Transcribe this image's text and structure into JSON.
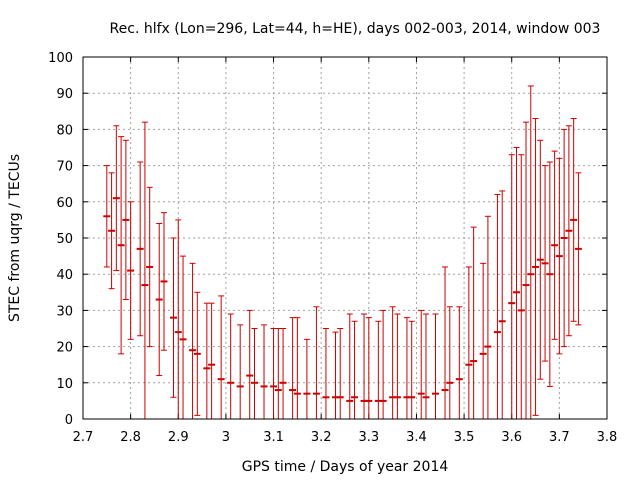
{
  "chart_data": {
    "type": "scatter",
    "title": "Rec. hlfx (Lon=296, Lat=44, h=HE), days 002-003, 2014, window 003",
    "xlabel": "GPS time / Days of year 2014",
    "ylabel": "STEC from uqrg / TECUs",
    "xlim": [
      2.7,
      3.8
    ],
    "ylim": [
      0,
      100
    ],
    "xticks": [
      "2.7",
      "2.8",
      "2.9",
      "3",
      "3.1",
      "3.2",
      "3.3",
      "3.4",
      "3.5",
      "3.6",
      "3.7",
      "3.8"
    ],
    "yticks": [
      "0",
      "10",
      "20",
      "30",
      "40",
      "50",
      "60",
      "70",
      "80",
      "90",
      "100"
    ],
    "grid": true,
    "series_color": "#cc0000",
    "series": [
      {
        "x": [
          2.75,
          2.76,
          2.77,
          2.78,
          2.79,
          2.8,
          2.82,
          2.83,
          2.84,
          2.86,
          2.87,
          2.89,
          2.9,
          2.91,
          2.93,
          2.94,
          2.96,
          2.97,
          2.99,
          3.01,
          3.03,
          3.05,
          3.06,
          3.08,
          3.1,
          3.11,
          3.12,
          3.14,
          3.15,
          3.17,
          3.19,
          3.21,
          3.23,
          3.24,
          3.26,
          3.27,
          3.29,
          3.3,
          3.32,
          3.33,
          3.35,
          3.36,
          3.38,
          3.39,
          3.41,
          3.42,
          3.44,
          3.46,
          3.47,
          3.49,
          3.51,
          3.52,
          3.54,
          3.55,
          3.57,
          3.58,
          3.6,
          3.61,
          3.62,
          3.63,
          3.64,
          3.65,
          3.66,
          3.67,
          3.68,
          3.69,
          3.7,
          3.71,
          3.72,
          3.73,
          3.74
        ],
        "y": [
          56,
          52,
          61,
          48,
          55,
          41,
          47,
          37,
          42,
          33,
          38,
          28,
          24,
          22,
          19,
          18,
          14,
          15,
          11,
          10,
          9,
          12,
          10,
          9,
          9,
          8,
          10,
          8,
          7,
          7,
          7,
          6,
          6,
          6,
          5,
          6,
          5,
          5,
          5,
          5,
          6,
          6,
          6,
          6,
          7,
          6,
          7,
          8,
          10,
          11,
          15,
          16,
          18,
          20,
          24,
          27,
          32,
          35,
          30,
          37,
          40,
          42,
          44,
          43,
          40,
          48,
          45,
          50,
          52,
          55,
          47
        ],
        "yerr": [
          14,
          16,
          20,
          30,
          22,
          19,
          24,
          45,
          22,
          21,
          19,
          22,
          31,
          23,
          24,
          17,
          18,
          17,
          23,
          19,
          17,
          18,
          15,
          17,
          16,
          17,
          15,
          20,
          21,
          15,
          24,
          19,
          18,
          19,
          24,
          21,
          24,
          23,
          22,
          25,
          25,
          23,
          22,
          21,
          23,
          23,
          22,
          34,
          21,
          20,
          27,
          37,
          25,
          36,
          38,
          36,
          41,
          40,
          43,
          45,
          52,
          41,
          33,
          27,
          31,
          26,
          27,
          30,
          29,
          28,
          21
        ]
      }
    ]
  }
}
